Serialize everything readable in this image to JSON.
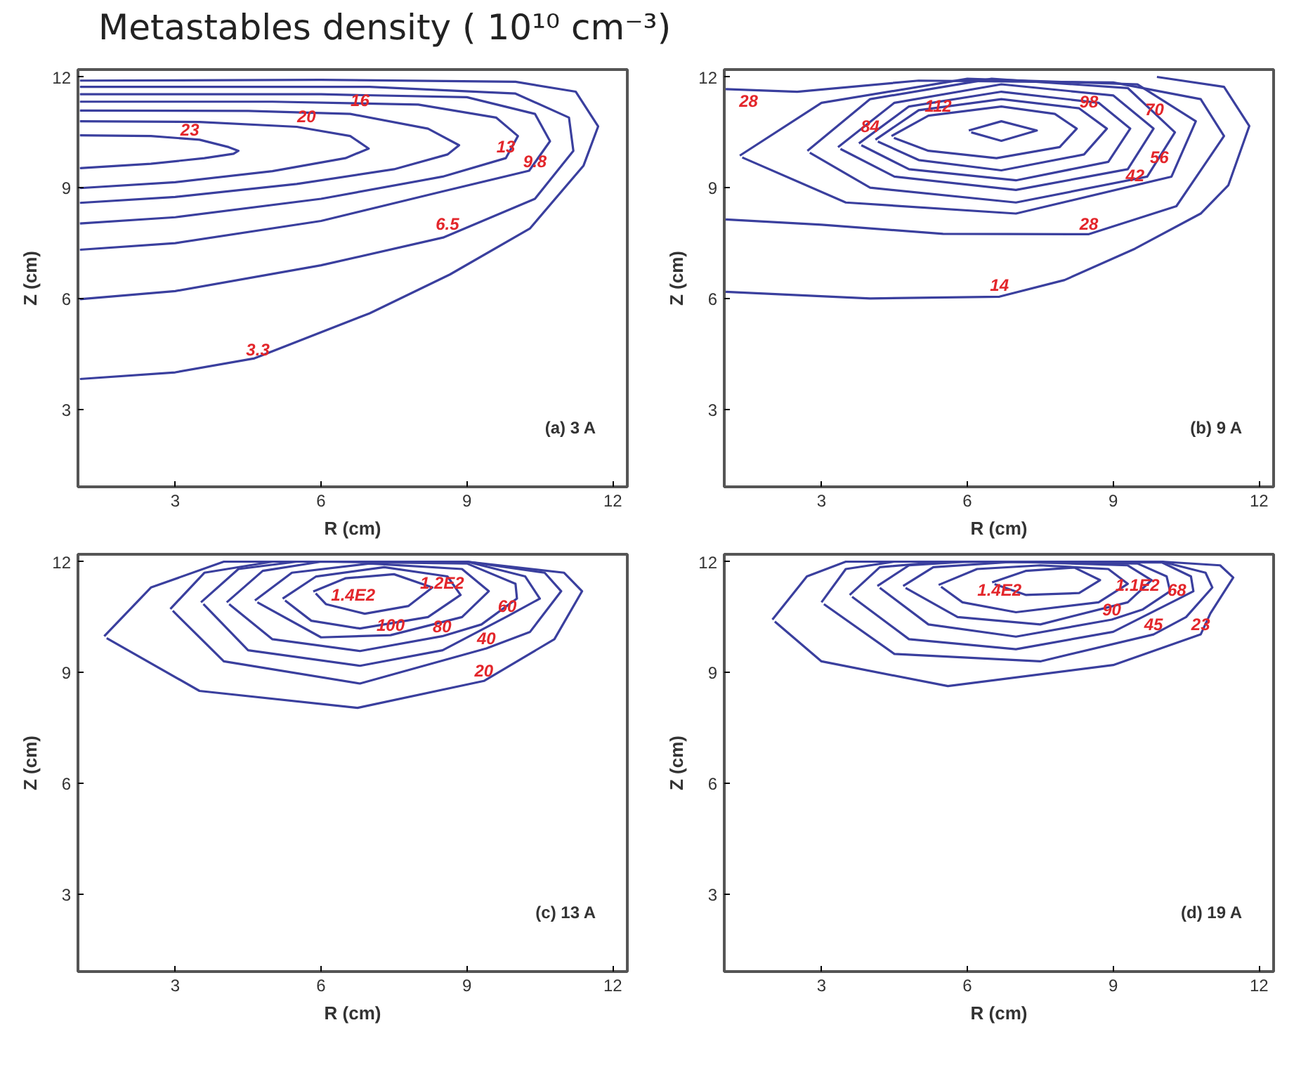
{
  "chart_data": [
    {
      "type": "line",
      "title": "Metastables density ( 10¹⁰ cm⁻³)",
      "xlabel": "R (cm)",
      "ylabel": "Z (cm)",
      "xlim": [
        1,
        12.3
      ],
      "ylim": [
        0.9,
        12.2
      ],
      "xticks": [
        3,
        6,
        9,
        12
      ],
      "yticks": [
        3,
        6,
        9,
        12
      ],
      "grid": false,
      "series": [
        {
          "color": "#3a3f9e",
          "x": [
            1.04,
            2.5,
            3.6,
            4.2,
            4.3,
            4.1,
            3.5,
            2.5,
            1.04
          ],
          "values": [
            9.53,
            9.65,
            9.8,
            9.92,
            10.0,
            10.1,
            10.3,
            10.4,
            10.42
          ]
        },
        {
          "color": "#3a3f9e",
          "x": [
            1.04,
            3,
            5,
            6.5,
            6.98,
            6.6,
            5.5,
            3.5,
            1.04
          ],
          "values": [
            8.99,
            9.15,
            9.45,
            9.8,
            10.06,
            10.4,
            10.65,
            10.78,
            10.8
          ]
        },
        {
          "color": "#3a3f9e",
          "x": [
            1.04,
            3,
            5.5,
            7.5,
            8.6,
            8.84,
            8.2,
            6.6,
            4.5,
            1.04
          ],
          "values": [
            8.59,
            8.75,
            9.1,
            9.5,
            9.9,
            10.15,
            10.6,
            11.0,
            11.08,
            11.09
          ]
        },
        {
          "color": "#3a3f9e",
          "x": [
            1.04,
            3,
            6,
            8.5,
            9.8,
            10.05,
            9.6,
            8,
            5,
            1.04
          ],
          "values": [
            8.03,
            8.2,
            8.7,
            9.3,
            9.8,
            10.4,
            10.9,
            11.25,
            11.33,
            11.33
          ]
        },
        {
          "color": "#3a3f9e",
          "x": [
            1.04,
            3,
            6,
            8.5,
            10.28,
            10.71,
            10.4,
            9,
            6,
            1.04
          ],
          "values": [
            7.32,
            7.5,
            8.1,
            8.9,
            9.46,
            10.26,
            11.0,
            11.45,
            11.53,
            11.53
          ]
        },
        {
          "color": "#3a3f9e",
          "x": [
            1.04,
            3,
            6,
            8.51,
            10.4,
            11.19,
            11.1,
            10,
            7,
            1.04
          ],
          "values": [
            5.98,
            6.2,
            6.9,
            7.65,
            8.7,
            10.0,
            10.9,
            11.55,
            11.73,
            11.73
          ]
        },
        {
          "color": "#3a3f9e",
          "x": [
            1.04,
            3,
            4.63,
            7,
            8.65,
            10.3,
            11.4,
            11.7,
            11.24,
            10,
            6,
            1.04
          ],
          "values": [
            3.82,
            4.0,
            4.38,
            5.6,
            6.65,
            7.9,
            9.6,
            10.66,
            11.6,
            11.87,
            11.92,
            11.9
          ]
        }
      ],
      "annotations": [
        "(a) 3 A",
        {
          "text": "23",
          "x": 3.3,
          "y": 10.3
        },
        {
          "text": "20",
          "x": 5.7,
          "y": 10.65
        },
        {
          "text": "16",
          "x": 6.8,
          "y": 11.1
        },
        {
          "text": "13",
          "x": 9.8,
          "y": 9.85
        },
        {
          "text": "9.8",
          "x": 10.4,
          "y": 9.45
        },
        {
          "text": "6.5",
          "x": 8.6,
          "y": 7.75
        },
        {
          "text": "3.3",
          "x": 4.7,
          "y": 4.35
        }
      ]
    },
    {
      "type": "line",
      "xlabel": "R (cm)",
      "ylabel": "Z (cm)",
      "xlim": [
        1,
        12.3
      ],
      "ylim": [
        0.9,
        12.2
      ],
      "xticks": [
        3,
        6,
        9,
        12
      ],
      "yticks": [
        3,
        6,
        9,
        12
      ],
      "grid": false,
      "series": [
        {
          "color": "#3a3f9e",
          "x": [
            1.03,
            4,
            6.66,
            8,
            9.45,
            10.8,
            11.37,
            11.8,
            11.28,
            9.9
          ],
          "values": [
            6.18,
            6.0,
            6.05,
            6.5,
            7.35,
            8.3,
            9.07,
            10.67,
            11.73,
            12.0
          ]
        },
        {
          "color": "#3a3f9e",
          "x": [
            1.03,
            3,
            5.5,
            8.49,
            10.3,
            11.28,
            10.8,
            9,
            5,
            2.5,
            1.03
          ],
          "values": [
            8.14,
            8.0,
            7.75,
            7.74,
            8.5,
            10.4,
            11.4,
            11.85,
            11.9,
            11.6,
            11.67
          ]
        },
        {
          "color": "#3a3f9e",
          "x": [
            1.32,
            3,
            6,
            9.5,
            10.7,
            10.2,
            7,
            3.5,
            1.37
          ],
          "values": [
            9.87,
            11.3,
            11.95,
            11.8,
            10.8,
            9.3,
            8.3,
            8.6,
            9.82
          ]
        },
        {
          "color": "#3a3f9e",
          "x": [
            2.71,
            4,
            6.5,
            9.3,
            10.27,
            9.7,
            7,
            4,
            2.76
          ],
          "values": [
            10.0,
            11.4,
            11.95,
            11.7,
            10.5,
            9.3,
            8.6,
            9.0,
            9.95
          ]
        },
        {
          "color": "#3a3f9e",
          "x": [
            3.34,
            4.5,
            6.7,
            9,
            9.83,
            9.3,
            7,
            4.5,
            3.39
          ],
          "values": [
            10.1,
            11.3,
            11.8,
            11.5,
            10.6,
            9.5,
            8.94,
            9.3,
            10.05
          ]
        },
        {
          "color": "#3a3f9e",
          "x": [
            3.77,
            4.8,
            6.7,
            8.7,
            9.35,
            8.9,
            7,
            4.8,
            3.82
          ],
          "values": [
            10.2,
            11.2,
            11.6,
            11.3,
            10.6,
            9.7,
            9.2,
            9.5,
            10.15
          ]
        },
        {
          "color": "#3a3f9e",
          "x": [
            4.11,
            5,
            6.7,
            8.3,
            8.87,
            8.4,
            6.7,
            5,
            4.16
          ],
          "values": [
            10.3,
            11.1,
            11.4,
            11.15,
            10.6,
            9.9,
            9.47,
            9.75,
            10.25
          ]
        },
        {
          "color": "#3a3f9e",
          "x": [
            4.44,
            5.2,
            6.7,
            7.8,
            8.25,
            7.9,
            6.6,
            5.2,
            4.49
          ],
          "values": [
            10.4,
            10.95,
            11.2,
            11.0,
            10.6,
            10.1,
            9.8,
            10.0,
            10.35
          ]
        },
        {
          "color": "#3a3f9e",
          "x": [
            6.03,
            6.7,
            7.43,
            6.7,
            6.08
          ],
          "values": [
            10.55,
            10.8,
            10.55,
            10.27,
            10.5
          ]
        }
      ],
      "annotations": [
        "(b) 9 A",
        {
          "text": "28",
          "x": 1.5,
          "y": 11.65
        },
        {
          "text": "84",
          "x": 4.0,
          "y": 10.4
        },
        {
          "text": "112",
          "x": 5.4,
          "y": 10.95
        },
        {
          "text": "98",
          "x": 8.5,
          "y": 11.05
        },
        {
          "text": "70",
          "x": 9.85,
          "y": 10.85
        },
        {
          "text": "56",
          "x": 9.95,
          "y": 9.55
        },
        {
          "text": "42",
          "x": 9.45,
          "y": 9.07
        },
        {
          "text": "28",
          "x": 8.5,
          "y": 7.75
        },
        {
          "text": "14",
          "x": 6.66,
          "y": 6.1
        }
      ]
    },
    {
      "type": "line",
      "xlabel": "R (cm)",
      "ylabel": "Z (cm)",
      "xlim": [
        1,
        12.3
      ],
      "ylim": [
        0.9,
        12.2
      ],
      "xticks": [
        3,
        6,
        9,
        12
      ],
      "yticks": [
        3,
        6,
        9,
        12
      ],
      "grid": false,
      "series": [
        {
          "color": "#3a3f9e",
          "x": [
            1.54,
            2.5,
            4,
            9,
            11.0,
            11.37,
            10.8,
            9.35,
            6.75,
            3.5,
            1.59
          ],
          "values": [
            9.98,
            11.3,
            12.0,
            12.0,
            11.7,
            11.2,
            9.9,
            8.77,
            8.04,
            8.5,
            9.93
          ]
        },
        {
          "color": "#3a3f9e",
          "x": [
            2.9,
            3.6,
            5,
            9,
            10.6,
            10.94,
            10.3,
            9.4,
            6.8,
            4,
            2.95
          ],
          "values": [
            10.72,
            11.7,
            12.0,
            12.0,
            11.7,
            11.2,
            10.1,
            9.65,
            8.7,
            9.3,
            10.67
          ]
        },
        {
          "color": "#3a3f9e",
          "x": [
            3.53,
            4.3,
            5.5,
            9,
            10.2,
            10.5,
            9.83,
            8.5,
            6.8,
            4.5,
            3.58
          ],
          "values": [
            10.9,
            11.8,
            12.0,
            12.0,
            11.6,
            11.0,
            10.52,
            9.6,
            9.18,
            9.6,
            10.85
          ]
        },
        {
          "color": "#3a3f9e",
          "x": [
            4.06,
            4.8,
            6,
            9,
            10.0,
            10.03,
            9.3,
            8.49,
            6.8,
            5,
            4.11
          ],
          "values": [
            10.9,
            11.75,
            12.0,
            11.95,
            11.4,
            11.0,
            10.3,
            9.98,
            9.58,
            9.9,
            10.85
          ]
        },
        {
          "color": "#3a3f9e",
          "x": [
            4.64,
            5.4,
            7,
            8.9,
            9.45,
            8.9,
            7.43,
            6,
            4.69
          ],
          "values": [
            10.95,
            11.7,
            11.95,
            11.8,
            11.2,
            10.5,
            10.01,
            9.95,
            10.9
          ]
        },
        {
          "color": "#3a3f9e",
          "x": [
            5.21,
            5.9,
            7.3,
            8.6,
            8.87,
            8.2,
            6.8,
            5.8,
            5.26
          ],
          "values": [
            11.0,
            11.6,
            11.85,
            11.6,
            11.1,
            10.5,
            10.19,
            10.4,
            10.95
          ]
        },
        {
          "color": "#3a3f9e",
          "x": [
            5.84,
            6.5,
            7.5,
            8.29,
            7.8,
            6.9,
            6.1,
            5.89
          ],
          "values": [
            11.19,
            11.55,
            11.66,
            11.3,
            10.8,
            10.59,
            10.85,
            11.14
          ]
        }
      ],
      "annotations": [
        "(c) 13 A",
        {
          "text": "1.2E2",
          "x": 8.49,
          "y": 11.8
        },
        {
          "text": "1.4E2",
          "x": 6.66,
          "y": 10.72
        },
        {
          "text": "100",
          "x": 7.43,
          "y": 10.01
        },
        {
          "text": "80",
          "x": 8.49,
          "y": 9.98
        },
        {
          "text": "60",
          "x": 9.83,
          "y": 10.52
        },
        {
          "text": "40",
          "x": 9.4,
          "y": 9.65
        },
        {
          "text": "20",
          "x": 9.35,
          "y": 8.77
        }
      ]
    },
    {
      "type": "line",
      "xlabel": "R (cm)",
      "ylabel": "Z (cm)",
      "xlim": [
        1,
        12.3
      ],
      "ylim": [
        0.9,
        12.2
      ],
      "xticks": [
        3,
        6,
        9,
        12
      ],
      "yticks": [
        3,
        6,
        9,
        12
      ],
      "grid": false,
      "series": [
        {
          "color": "#3a3f9e",
          "x": [
            1.99,
            2.7,
            3.5,
            10,
            11.2,
            11.47,
            11.0,
            10.8,
            9,
            5.6,
            3,
            2.04
          ],
          "values": [
            10.43,
            11.6,
            12.0,
            12.0,
            11.9,
            11.57,
            10.6,
            10.03,
            9.2,
            8.63,
            9.3,
            10.38
          ]
        },
        {
          "color": "#3a3f9e",
          "x": [
            3.0,
            3.5,
            4.5,
            10,
            10.9,
            11.04,
            10.5,
            9.83,
            7.5,
            4.5,
            3.05
          ],
          "values": [
            10.9,
            11.8,
            12.0,
            12.0,
            11.7,
            11.3,
            10.5,
            10.03,
            9.3,
            9.5,
            10.85
          ]
        },
        {
          "color": "#3a3f9e",
          "x": [
            3.58,
            4.2,
            5.5,
            10,
            10.6,
            10.65,
            10.31,
            9,
            7,
            4.8,
            3.63
          ],
          "values": [
            11.1,
            11.85,
            12.0,
            11.98,
            11.6,
            11.2,
            10.97,
            10.1,
            9.63,
            9.9,
            11.05
          ]
        },
        {
          "color": "#3a3f9e",
          "x": [
            4.15,
            4.8,
            6,
            9.5,
            10.1,
            10.17,
            9.6,
            8.97,
            7,
            5.2,
            4.2
          ],
          "values": [
            11.34,
            11.9,
            12.0,
            11.95,
            11.6,
            11.2,
            10.7,
            10.43,
            9.97,
            10.3,
            11.29
          ]
        },
        {
          "color": "#3a3f9e",
          "x": [
            4.68,
            5.3,
            7,
            9.3,
            9.79,
            9.3,
            7.5,
            5.8,
            4.73
          ],
          "values": [
            11.34,
            11.85,
            12.0,
            11.9,
            11.5,
            10.9,
            10.3,
            10.5,
            11.29
          ]
        },
        {
          "color": "#3a3f9e",
          "x": [
            5.41,
            6.2,
            7.5,
            8.9,
            9.3,
            8.7,
            7,
            5.9,
            5.46
          ],
          "values": [
            11.37,
            11.8,
            11.9,
            11.8,
            11.4,
            10.9,
            10.63,
            10.9,
            11.32
          ]
        },
        {
          "color": "#3a3f9e",
          "x": [
            6.51,
            7.2,
            8.2,
            8.73,
            8.3,
            7.2,
            6.56
          ],
          "values": [
            11.44,
            11.75,
            11.84,
            11.5,
            11.15,
            11.1,
            11.39
          ]
        }
      ],
      "annotations": [
        "(d) 19 A",
        {
          "text": "1.1E2",
          "x": 9.5,
          "y": 11.74
        },
        {
          "text": "68",
          "x": 10.31,
          "y": 10.97
        },
        {
          "text": "1.4E2",
          "x": 6.66,
          "y": 10.84
        },
        {
          "text": "90",
          "x": 8.97,
          "y": 10.43
        },
        {
          "text": "45",
          "x": 9.83,
          "y": 10.03
        },
        {
          "text": "23",
          "x": 10.8,
          "y": 10.03
        }
      ]
    }
  ]
}
